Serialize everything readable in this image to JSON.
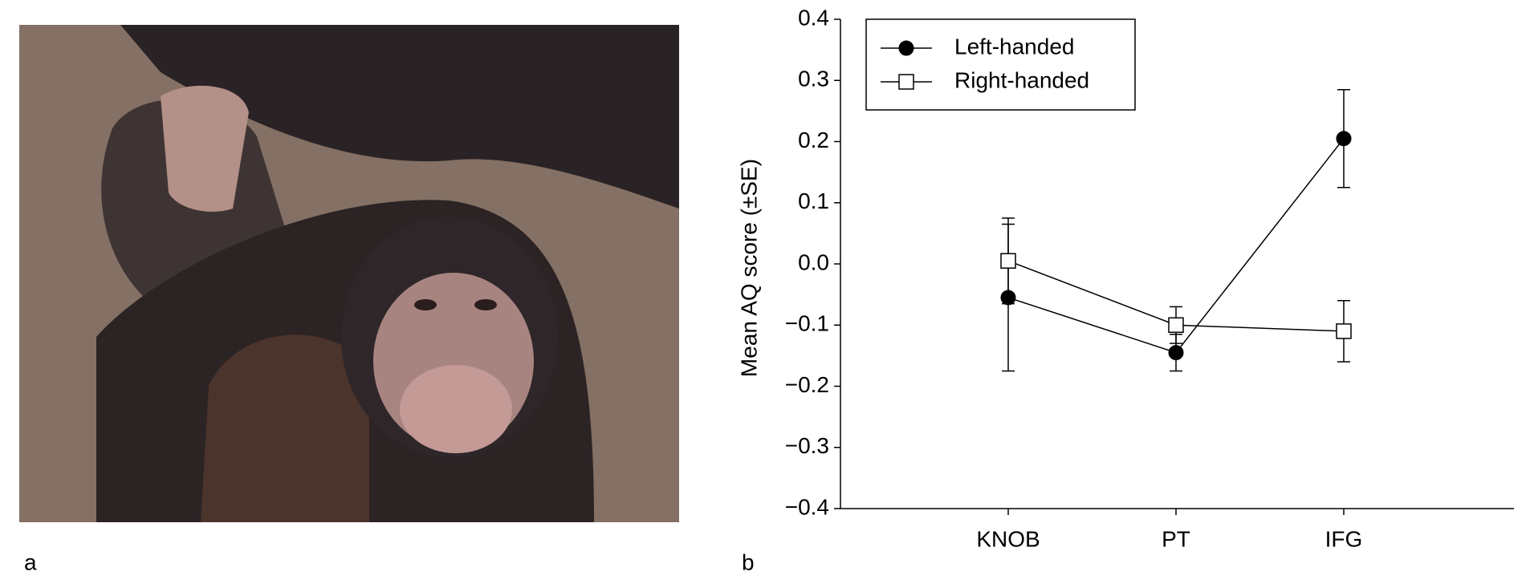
{
  "panel_labels": [
    "a",
    "b"
  ],
  "chart_data": {
    "type": "line",
    "y_label": "Mean AQ score (±SE)",
    "categories": [
      "KNOB",
      "PT",
      "IFG"
    ],
    "series": [
      {
        "name": "Left-handed",
        "color": "#000000",
        "marker": "circle",
        "values": [
          -0.055,
          -0.145,
          0.205
        ],
        "errors": [
          0.12,
          0.03,
          0.08
        ]
      },
      {
        "name": "Right-handed",
        "color": "#000000",
        "marker": "square",
        "values": [
          0.005,
          -0.1,
          -0.11
        ],
        "errors": [
          0.07,
          0.03,
          0.05
        ]
      }
    ],
    "ylim": [
      -0.4,
      0.4
    ],
    "yticks": [
      {
        "value": -0.4,
        "label": "−0.4"
      },
      {
        "value": -0.3,
        "label": "−0.3"
      },
      {
        "value": -0.2,
        "label": "−0.2"
      },
      {
        "value": -0.1,
        "label": "−0.1"
      },
      {
        "value": 0,
        "label": "0.0"
      },
      0.1,
      0.2,
      0.3,
      0.4
    ],
    "legend": "upper-left"
  }
}
